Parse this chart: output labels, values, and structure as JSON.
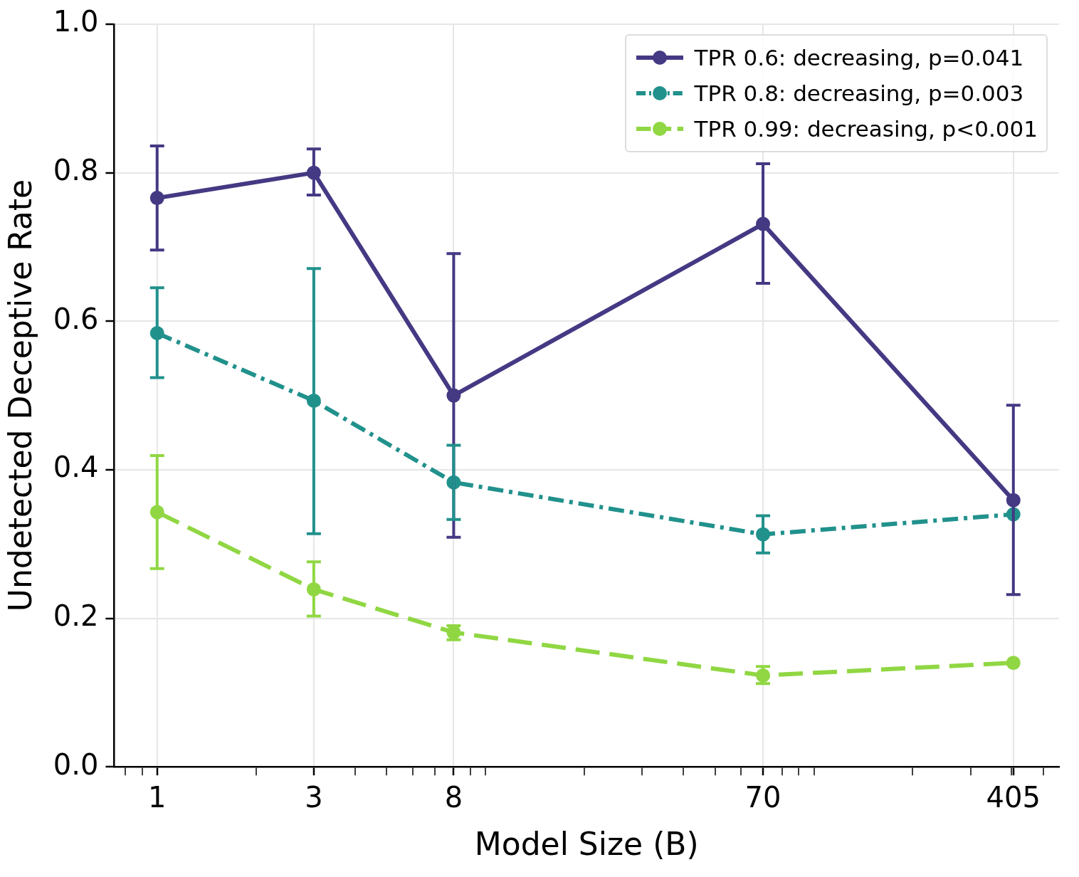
{
  "chart_data": {
    "type": "line",
    "xlabel": "Model Size (B)",
    "ylabel": "Undetected Deceptive Rate",
    "x": [
      1,
      3,
      8,
      70,
      405
    ],
    "log": "x",
    "xlim": [
      0.74,
      558
    ],
    "xticks": [
      {
        "value": 0.8,
        "label": null
      },
      {
        "value": 0.9,
        "label": null
      },
      1,
      {
        "value": 2,
        "label": null
      },
      3,
      {
        "value": 4,
        "label": null
      },
      {
        "value": 5,
        "label": null
      },
      {
        "value": 6,
        "label": null
      },
      {
        "value": 7,
        "label": null
      },
      8,
      {
        "value": 9,
        "label": null
      },
      {
        "value": 10,
        "label": null
      },
      {
        "value": 20,
        "label": null
      },
      {
        "value": 30,
        "label": null
      },
      {
        "value": 40,
        "label": null
      },
      {
        "value": 50,
        "label": null
      },
      {
        "value": 60,
        "label": null
      },
      70,
      {
        "value": 80,
        "label": null
      },
      {
        "value": 90,
        "label": null
      },
      {
        "value": 100,
        "label": null
      },
      {
        "value": 200,
        "label": null
      },
      {
        "value": 300,
        "label": null
      },
      {
        "value": 400,
        "label": null
      },
      405,
      {
        "value": 500,
        "label": null
      }
    ],
    "ylim": [
      0,
      1
    ],
    "yticks": [
      {
        "value": 0,
        "label": "0.0"
      },
      0.2,
      0.4,
      0.6,
      0.8,
      {
        "value": 1,
        "label": "1.0"
      }
    ],
    "grid": true,
    "legend": "top right",
    "marker": "circle",
    "series": [
      {
        "name": "TPR 0.6: decreasing, p=0.041",
        "color": "#443983",
        "line_style": "solid",
        "values": [
          0.766,
          0.8,
          0.5,
          0.731,
          0.359
        ],
        "errors": [
          [
            0.696,
            0.836
          ],
          [
            0.77,
            0.832
          ],
          [
            0.309,
            0.691
          ],
          [
            0.651,
            0.812
          ],
          [
            0.232,
            0.487
          ]
        ]
      },
      {
        "name": "TPR 0.8: decreasing, p=0.003",
        "color": "#21918c",
        "line_style": "dashdot",
        "values": [
          0.584,
          0.493,
          0.383,
          0.313,
          0.34
        ],
        "errors": [
          [
            0.524,
            0.645
          ],
          [
            0.314,
            0.671
          ],
          [
            0.333,
            0.433
          ],
          [
            0.288,
            0.338
          ],
          null
        ]
      },
      {
        "name": "TPR 0.99: decreasing, p<0.001",
        "color": "#90d743",
        "line_style": "dashed",
        "values": [
          0.343,
          0.239,
          0.181,
          0.123,
          0.14
        ],
        "errors": [
          [
            0.267,
            0.419
          ],
          [
            0.203,
            0.276
          ],
          [
            0.171,
            0.19
          ],
          [
            0.112,
            0.135
          ],
          null
        ]
      }
    ]
  }
}
